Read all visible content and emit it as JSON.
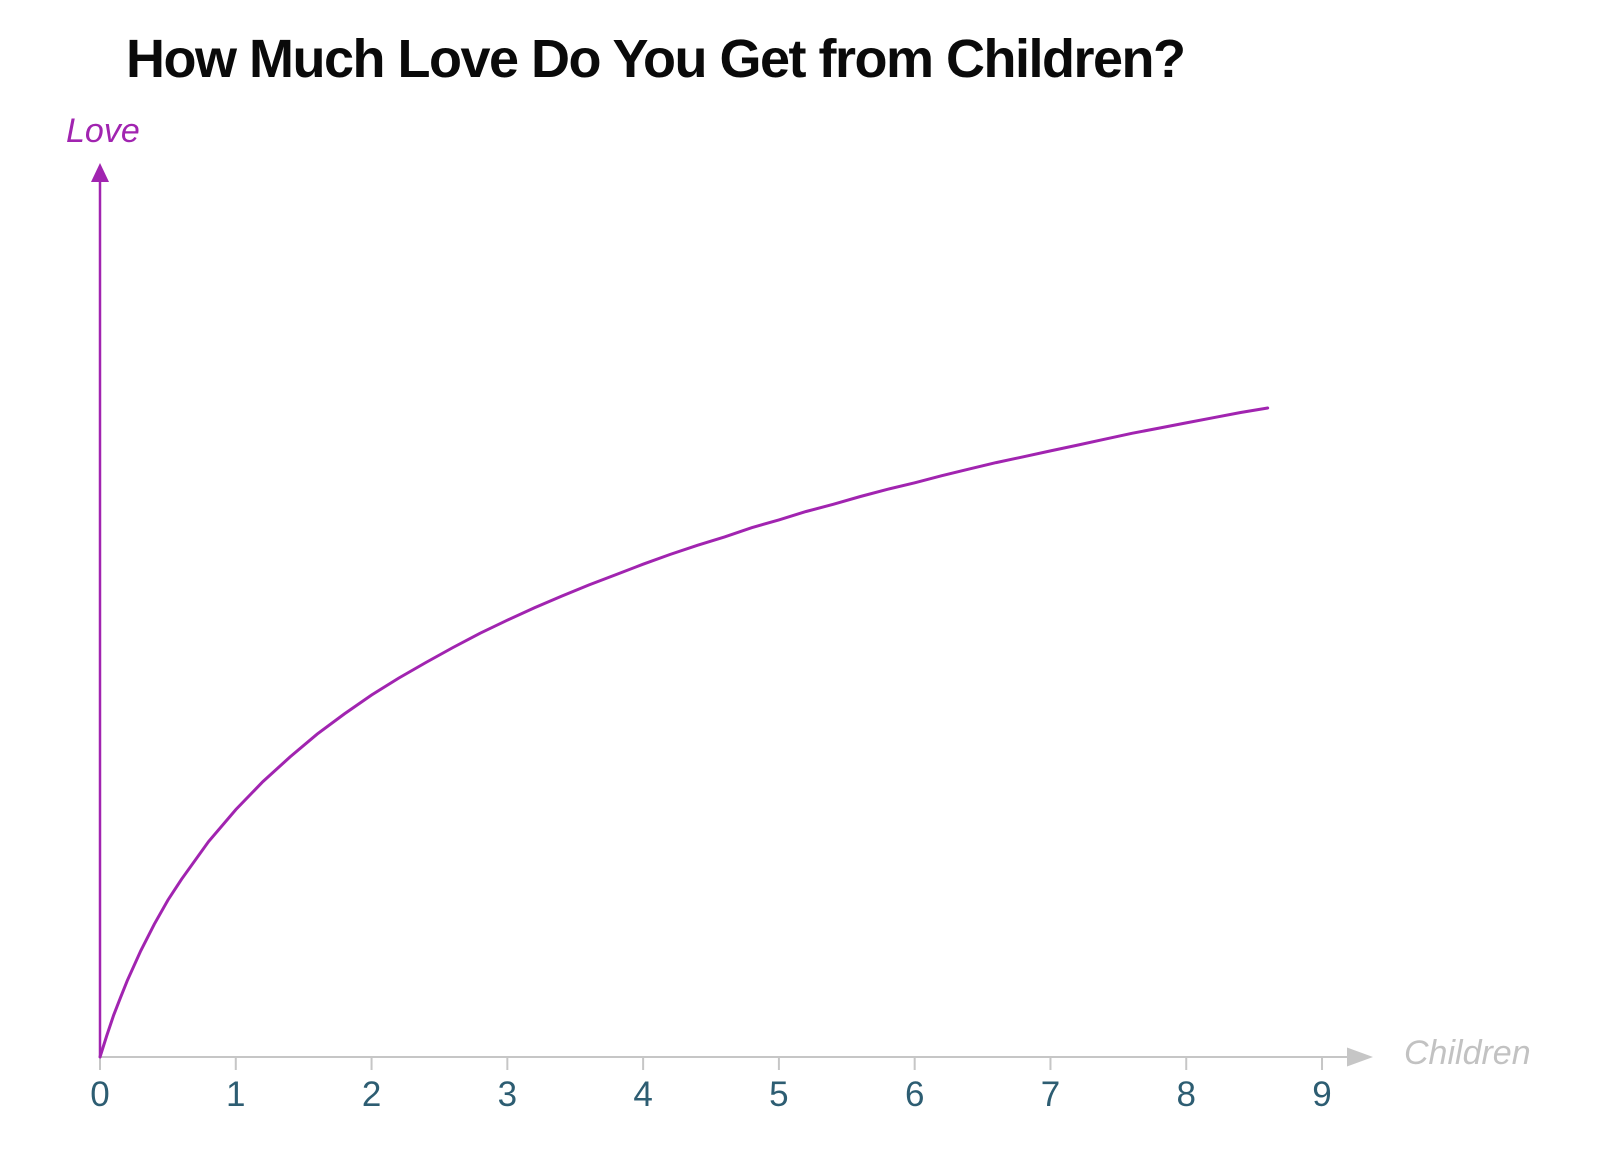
{
  "title": "How Much Love Do You Get from Children?",
  "colors": {
    "curve": "#A124B0",
    "y_axis": "#A124B0",
    "y_axis_label": "#A124B0",
    "x_axis": "#C6C6C6",
    "tick_marks": "#C6C6C6",
    "tick_labels": "#2D5D72",
    "x_axis_label": "#C2C2C2",
    "title_text": "#0A0A0A",
    "background": "#FFFFFF"
  },
  "chart_data": {
    "type": "line",
    "title": "How Much Love Do You Get from Children?",
    "xlabel": "Children",
    "ylabel": "Love",
    "x_ticks": [
      0,
      1,
      2,
      3,
      4,
      5,
      6,
      7,
      8,
      9
    ],
    "xlim": [
      0,
      9.4
    ],
    "ylim": [
      0,
      100
    ],
    "y_ticks": [],
    "y_units": "unlabeled qualitative axis (love in relative units, 100 = curve endpoint)",
    "grid": false,
    "legend": false,
    "shape_note": "concave increasing, diminishing returns; approx love = 34.1 * ln(1 + 2.05 * children), ends near children = 8.6",
    "series": [
      {
        "name": "love-vs-children",
        "points": [
          [
            0,
            0
          ],
          [
            0.05,
            3.3
          ],
          [
            0.1,
            6.4
          ],
          [
            0.15,
            9.1
          ],
          [
            0.2,
            11.7
          ],
          [
            0.3,
            16.3
          ],
          [
            0.4,
            20.4
          ],
          [
            0.5,
            24.1
          ],
          [
            0.6,
            27.3
          ],
          [
            0.8,
            33.1
          ],
          [
            1,
            38.0
          ],
          [
            1.2,
            42.3
          ],
          [
            1.4,
            46.1
          ],
          [
            1.6,
            49.6
          ],
          [
            1.8,
            52.7
          ],
          [
            2,
            55.6
          ],
          [
            2.2,
            58.2
          ],
          [
            2.4,
            60.6
          ],
          [
            2.6,
            62.9
          ],
          [
            2.8,
            65.1
          ],
          [
            3,
            67.1
          ],
          [
            3.2,
            69.0
          ],
          [
            3.4,
            70.8
          ],
          [
            3.6,
            72.5
          ],
          [
            3.8,
            74.1
          ],
          [
            4,
            75.7
          ],
          [
            4.2,
            77.2
          ],
          [
            4.4,
            78.6
          ],
          [
            4.6,
            79.9
          ],
          [
            4.8,
            81.3
          ],
          [
            5,
            82.5
          ],
          [
            5.2,
            83.8
          ],
          [
            5.4,
            84.9
          ],
          [
            5.6,
            86.1
          ],
          [
            5.8,
            87.2
          ],
          [
            6,
            88.2
          ],
          [
            6.2,
            89.3
          ],
          [
            6.4,
            90.3
          ],
          [
            6.6,
            91.3
          ],
          [
            6.8,
            92.2
          ],
          [
            7,
            93.1
          ],
          [
            7.2,
            94.0
          ],
          [
            7.4,
            94.9
          ],
          [
            7.6,
            95.8
          ],
          [
            7.8,
            96.6
          ],
          [
            8,
            97.4
          ],
          [
            8.2,
            98.2
          ],
          [
            8.4,
            99.0
          ],
          [
            8.6,
            99.7
          ]
        ]
      }
    ]
  }
}
